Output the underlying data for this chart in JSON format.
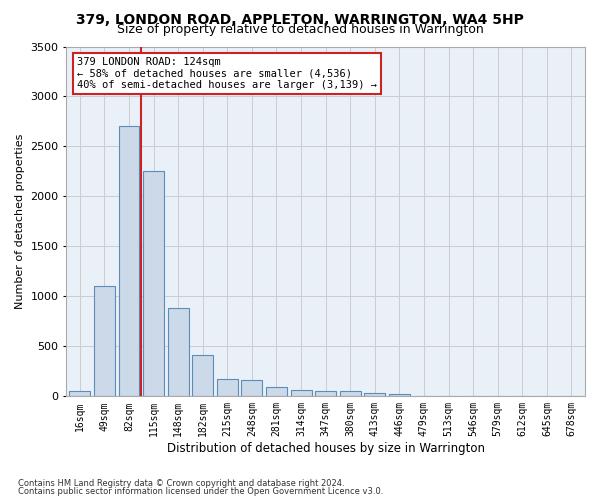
{
  "title1": "379, LONDON ROAD, APPLETON, WARRINGTON, WA4 5HP",
  "title2": "Size of property relative to detached houses in Warrington",
  "xlabel": "Distribution of detached houses by size in Warrington",
  "ylabel": "Number of detached properties",
  "categories": [
    "16sqm",
    "49sqm",
    "82sqm",
    "115sqm",
    "148sqm",
    "182sqm",
    "215sqm",
    "248sqm",
    "281sqm",
    "314sqm",
    "347sqm",
    "380sqm",
    "413sqm",
    "446sqm",
    "479sqm",
    "513sqm",
    "546sqm",
    "579sqm",
    "612sqm",
    "645sqm",
    "678sqm"
  ],
  "values": [
    55,
    1100,
    2700,
    2250,
    880,
    415,
    170,
    165,
    95,
    65,
    55,
    50,
    35,
    25,
    5,
    5,
    0,
    0,
    0,
    0,
    0
  ],
  "bar_color": "#ccd9e8",
  "bar_edge_color": "#5b8db8",
  "grid_color": "#cccccc",
  "bg_color": "#eaf0f8",
  "vline_x": 2.5,
  "vline_color": "#cc2222",
  "annotation_text": "379 LONDON ROAD: 124sqm\n← 58% of detached houses are smaller (4,536)\n40% of semi-detached houses are larger (3,139) →",
  "annotation_box_color": "#ffffff",
  "annotation_box_edge": "#cc2222",
  "footer1": "Contains HM Land Registry data © Crown copyright and database right 2024.",
  "footer2": "Contains public sector information licensed under the Open Government Licence v3.0.",
  "ylim": [
    0,
    3500
  ],
  "yticks": [
    0,
    500,
    1000,
    1500,
    2000,
    2500,
    3000,
    3500
  ],
  "title1_fontsize": 10,
  "title2_fontsize": 9
}
